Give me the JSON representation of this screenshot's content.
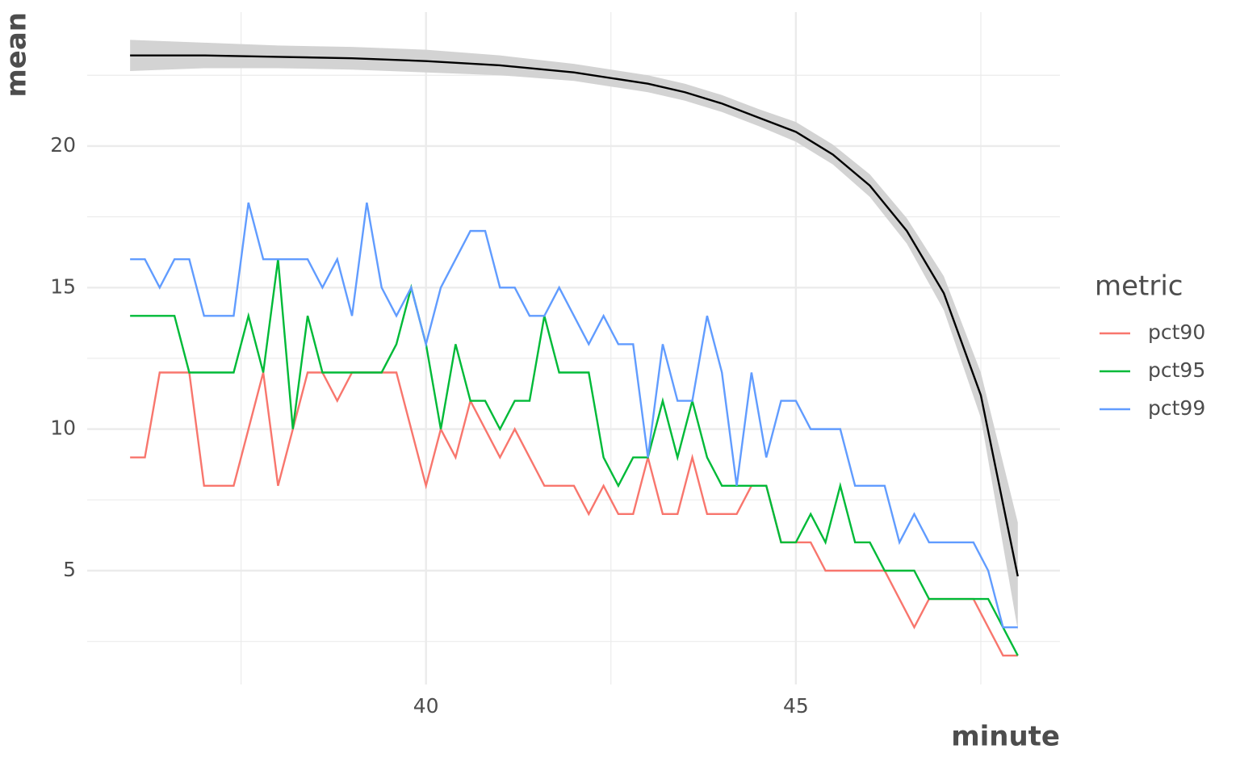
{
  "chart_data": {
    "type": "line",
    "x_label": "minute",
    "y_label": "mean",
    "legend_title": "metric",
    "legend_position": "right",
    "xlim": [
      35.42,
      48.57
    ],
    "ylim": [
      0.98,
      24.73
    ],
    "xticks": [
      40,
      45
    ],
    "yticks": [
      5,
      10,
      15,
      20
    ],
    "x_minor_ticks": [
      37.5,
      42.5,
      47.5
    ],
    "y_minor_ticks": [
      2.5,
      7.5,
      12.5,
      17.5,
      22.5
    ],
    "grid": true,
    "x": [
      36.0,
      36.2,
      36.4,
      36.6,
      36.8,
      37.0,
      37.2,
      37.4,
      37.6,
      37.8,
      38.0,
      38.2,
      38.4,
      38.6,
      38.8,
      39.0,
      39.2,
      39.4,
      39.6,
      39.8,
      40.0,
      40.2,
      40.4,
      40.6,
      40.8,
      41.0,
      41.2,
      41.4,
      41.6,
      41.8,
      42.0,
      42.2,
      42.4,
      42.6,
      42.8,
      43.0,
      43.2,
      43.4,
      43.6,
      43.8,
      44.0,
      44.2,
      44.4,
      44.6,
      44.8,
      45.0,
      45.2,
      45.4,
      45.6,
      45.8,
      46.0,
      46.2,
      46.4,
      46.6,
      46.8,
      47.0,
      47.2,
      47.4,
      47.6,
      47.8,
      48.0
    ],
    "series": [
      {
        "name": "pct90",
        "color": "#F8766D",
        "values": [
          9,
          9,
          12,
          12,
          12,
          8,
          8,
          8,
          10,
          12,
          8,
          10,
          12,
          12,
          11,
          12,
          12,
          12,
          12,
          10,
          8,
          10,
          9,
          11,
          10,
          9,
          10,
          9,
          8,
          8,
          8,
          7,
          8,
          7,
          7,
          9,
          7,
          7,
          9,
          7,
          7,
          7,
          8,
          8,
          6,
          6,
          6,
          5,
          5,
          5,
          5,
          5,
          4,
          3,
          4,
          4,
          4,
          4,
          3,
          2,
          2
        ]
      },
      {
        "name": "pct95",
        "color": "#00BA38",
        "values": [
          14,
          14,
          14,
          14,
          12,
          12,
          12,
          12,
          14,
          12,
          16,
          10,
          14,
          12,
          12,
          12,
          12,
          12,
          13,
          15,
          13,
          10,
          13,
          11,
          11,
          10,
          11,
          11,
          14,
          12,
          12,
          12,
          9,
          8,
          9,
          9,
          11,
          9,
          11,
          9,
          8,
          8,
          8,
          8,
          6,
          6,
          7,
          6,
          8,
          6,
          6,
          5,
          5,
          5,
          4,
          4,
          4,
          4,
          4,
          3,
          2
        ]
      },
      {
        "name": "pct99",
        "color": "#619CFF",
        "values": [
          16,
          16,
          15,
          16,
          16,
          14,
          14,
          14,
          18,
          16,
          16,
          16,
          16,
          15,
          16,
          14,
          18,
          15,
          14,
          15,
          13,
          15,
          16,
          17,
          17,
          15,
          15,
          14,
          14,
          15,
          14,
          13,
          14,
          13,
          13,
          9,
          13,
          11,
          11,
          14,
          12,
          8,
          12,
          9,
          11,
          11,
          10,
          10,
          10,
          8,
          8,
          8,
          6,
          7,
          6,
          6,
          6,
          6,
          5,
          3,
          3
        ]
      }
    ],
    "fit": {
      "color": "#000000",
      "band_color": "#d3d3d3",
      "x": [
        36,
        37,
        38,
        39,
        40,
        41,
        42,
        43,
        43.5,
        44,
        44.5,
        45,
        45.5,
        46,
        46.5,
        47,
        47.5,
        48
      ],
      "values": [
        23.2,
        23.2,
        23.15,
        23.1,
        23.0,
        22.85,
        22.6,
        22.2,
        21.9,
        21.5,
        21.0,
        20.5,
        19.7,
        18.6,
        17.0,
        14.8,
        11.2,
        4.8
      ],
      "lower": [
        22.65,
        22.75,
        22.75,
        22.7,
        22.6,
        22.5,
        22.3,
        21.9,
        21.6,
        21.2,
        20.7,
        20.15,
        19.35,
        18.2,
        16.55,
        14.2,
        10.4,
        2.9
      ],
      "upper": [
        23.75,
        23.65,
        23.55,
        23.5,
        23.4,
        23.2,
        22.9,
        22.5,
        22.2,
        21.8,
        21.3,
        20.85,
        20.05,
        19.0,
        17.45,
        15.4,
        12.0,
        6.7
      ]
    }
  }
}
